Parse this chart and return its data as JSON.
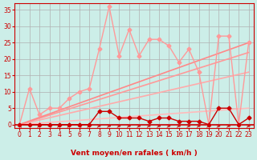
{
  "bg_color": "#cceee8",
  "grid_color": "#b0b0b0",
  "xlabel": "Vent moyen/en rafales ( km/h )",
  "xlabel_color": "#cc0000",
  "tick_color": "#cc0000",
  "xlim": [
    -0.5,
    23.5
  ],
  "ylim": [
    -1,
    37
  ],
  "yticks": [
    0,
    5,
    10,
    15,
    20,
    25,
    30,
    35
  ],
  "xticks": [
    0,
    1,
    2,
    3,
    4,
    5,
    6,
    7,
    8,
    9,
    10,
    11,
    12,
    13,
    14,
    15,
    16,
    17,
    18,
    19,
    20,
    21,
    22,
    23
  ],
  "rafales_line": {
    "x": [
      0,
      1,
      2,
      3,
      4,
      5,
      6,
      7,
      8,
      9,
      10,
      11,
      12,
      13,
      14,
      15,
      16,
      17,
      18,
      19,
      20,
      21,
      22,
      23
    ],
    "y": [
      0,
      11,
      3,
      5,
      5,
      8,
      10,
      11,
      23,
      36,
      21,
      29,
      21,
      26,
      26,
      24,
      19,
      23,
      16,
      0,
      27,
      27,
      0,
      25
    ],
    "color": "#ff9999",
    "lw": 1.0,
    "ms": 2.5
  },
  "moyen_line": {
    "x": [
      0,
      1,
      2,
      3,
      4,
      5,
      6,
      7,
      8,
      9,
      10,
      11,
      12,
      13,
      14,
      15,
      16,
      17,
      18,
      19,
      20,
      21,
      22,
      23
    ],
    "y": [
      0,
      0,
      0,
      0,
      0,
      0,
      0,
      0,
      4,
      4,
      2,
      2,
      2,
      1,
      2,
      2,
      1,
      1,
      1,
      0,
      5,
      5,
      0,
      2
    ],
    "color": "#cc0000",
    "lw": 1.0,
    "ms": 2.5
  },
  "trend_lines": [
    {
      "x0": 0,
      "y0": 0,
      "x1": 23,
      "y1": 5,
      "color": "#ffbbbb",
      "lw": 1.2
    },
    {
      "x0": 0,
      "y0": 0,
      "x1": 23,
      "y1": 16,
      "color": "#ffaaaa",
      "lw": 1.2
    },
    {
      "x0": 0,
      "y0": 0,
      "x1": 23,
      "y1": 22,
      "color": "#ff9999",
      "lw": 1.2
    },
    {
      "x0": 0,
      "y0": 0,
      "x1": 23,
      "y1": 25,
      "color": "#ff8888",
      "lw": 1.2
    }
  ],
  "baseline_color": "#cc0000",
  "arrow_color": "#cc0000",
  "arrow_angles": [
    225,
    90,
    45,
    225,
    45,
    45,
    225,
    45,
    45,
    45,
    45,
    45,
    45,
    45,
    45,
    45,
    45,
    45,
    45,
    45,
    45,
    45,
    90,
    45
  ]
}
